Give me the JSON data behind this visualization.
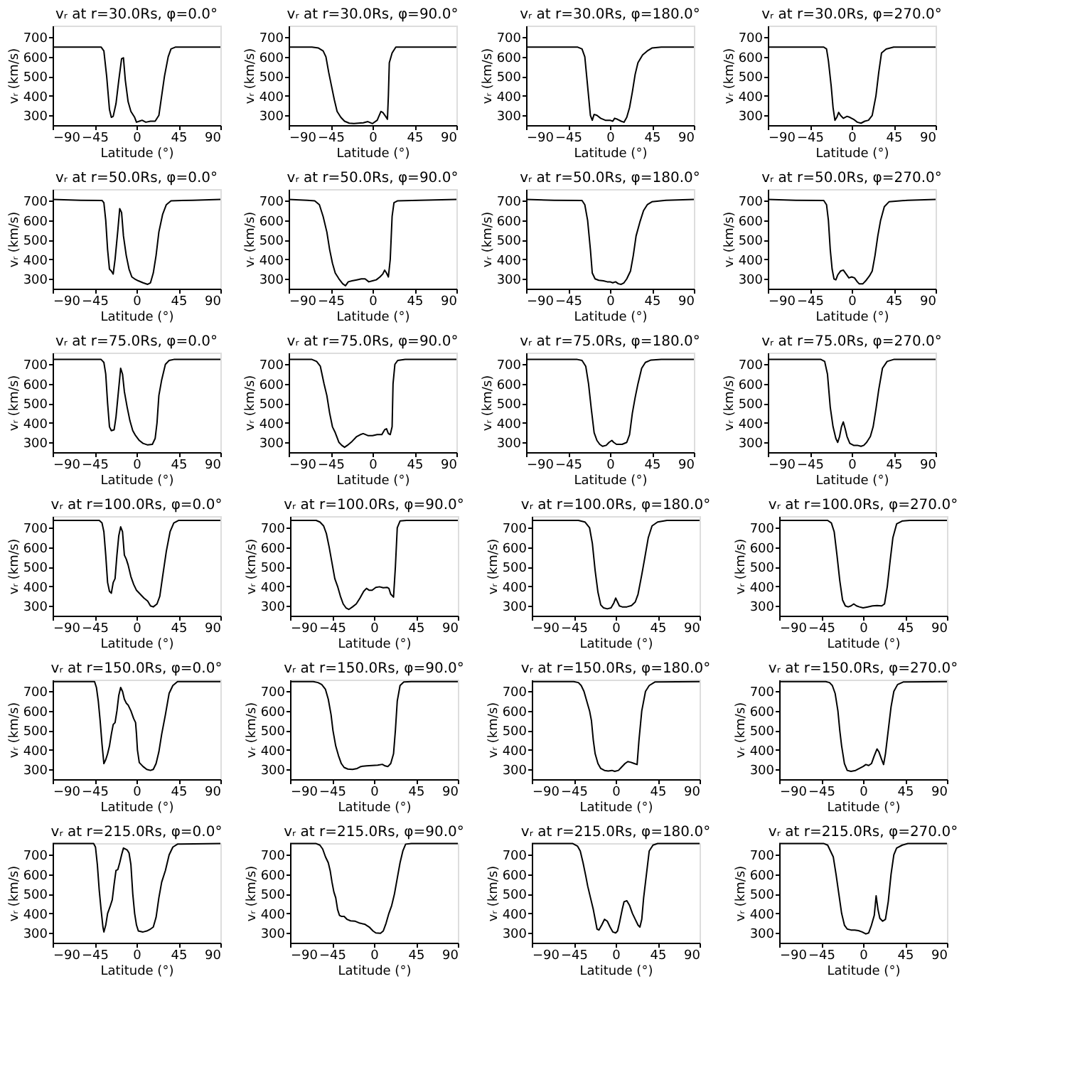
{
  "chart_data": [
    {
      "type": "line",
      "title": "vᵣ at r=30.0Rs, φ=0.0°",
      "xlabel": "Latitude (°)",
      "ylabel": "vᵣ (km/s)",
      "xlim": [
        -90,
        90
      ],
      "ylim": [
        250,
        760
      ],
      "xticks": [
        -90,
        -45,
        0,
        45,
        90
      ],
      "yticks": [
        300,
        400,
        500,
        600,
        700
      ],
      "series": [
        {
          "color": "#000000",
          "x": [
            -90,
            -38,
            -35,
            -32,
            -29,
            -27,
            -25,
            -22,
            -19,
            -16,
            -14,
            -12,
            -9,
            -6,
            -2,
            0,
            3,
            6,
            10,
            15,
            20,
            24,
            27,
            30,
            34,
            37,
            42,
            90
          ],
          "values": [
            650,
            650,
            630,
            500,
            330,
            290,
            295,
            360,
            480,
            590,
            595,
            480,
            370,
            320,
            290,
            265,
            270,
            275,
            265,
            270,
            270,
            300,
            400,
            500,
            600,
            640,
            650,
            650
          ]
        }
      ]
    },
    {
      "type": "line",
      "title": "vᵣ at r=30.0Rs, φ=90.0°",
      "xlabel": "Latitude (°)",
      "ylabel": "vᵣ (km/s)",
      "xlim": [
        -90,
        90
      ],
      "ylim": [
        250,
        760
      ],
      "xticks": [
        -90,
        -45,
        0,
        45,
        90
      ],
      "yticks": [
        300,
        400,
        500,
        600,
        700
      ],
      "series": [
        {
          "color": "#000000",
          "x": [
            -90,
            -65,
            -58,
            -53,
            -50,
            -47,
            -44,
            -41,
            -38,
            -34,
            -30,
            -25,
            -20,
            -10,
            -5,
            0,
            5,
            9,
            11,
            14,
            16,
            17,
            18,
            21,
            25,
            90
          ],
          "values": [
            650,
            650,
            645,
            630,
            600,
            520,
            450,
            380,
            320,
            290,
            270,
            260,
            258,
            262,
            268,
            258,
            275,
            320,
            315,
            295,
            280,
            400,
            570,
            620,
            650,
            650
          ]
        }
      ]
    },
    {
      "type": "line",
      "title": "vᵣ at r=30.0Rs, φ=180.0°",
      "xlabel": "Latitude (°)",
      "ylabel": "vᵣ (km/s)",
      "xlim": [
        -90,
        90
      ],
      "ylim": [
        250,
        760
      ],
      "xticks": [
        -90,
        -45,
        0,
        45,
        90
      ],
      "yticks": [
        300,
        400,
        500,
        600,
        700
      ],
      "series": [
        {
          "color": "#000000",
          "x": [
            -90,
            -35,
            -30,
            -27,
            -25,
            -23,
            -21,
            -19,
            -17,
            -14,
            -10,
            -5,
            0,
            3,
            5,
            8,
            12,
            15,
            18,
            21,
            24,
            27,
            30,
            35,
            40,
            45,
            55,
            90
          ],
          "values": [
            650,
            650,
            640,
            600,
            500,
            400,
            300,
            275,
            305,
            300,
            285,
            275,
            275,
            270,
            285,
            280,
            270,
            265,
            290,
            340,
            420,
            510,
            570,
            610,
            630,
            645,
            650,
            650
          ]
        }
      ]
    },
    {
      "type": "line",
      "title": "vᵣ at r=30.0Rs, φ=270.0°",
      "xlabel": "Latitude (°)",
      "ylabel": "vᵣ (km/s)",
      "xlim": [
        -90,
        90
      ],
      "ylim": [
        250,
        760
      ],
      "xticks": [
        -90,
        -45,
        0,
        45,
        90
      ],
      "yticks": [
        300,
        400,
        500,
        600,
        700
      ],
      "series": [
        {
          "color": "#000000",
          "x": [
            -90,
            -30,
            -27,
            -25,
            -22,
            -20,
            -18,
            -16,
            -14,
            -12,
            -9,
            -5,
            -2,
            2,
            6,
            10,
            14,
            18,
            22,
            26,
            29,
            32,
            37,
            45,
            90
          ],
          "values": [
            650,
            650,
            640,
            580,
            450,
            340,
            275,
            290,
            315,
            300,
            285,
            295,
            290,
            280,
            265,
            260,
            270,
            275,
            300,
            400,
            520,
            620,
            640,
            650,
            650
          ]
        }
      ]
    },
    {
      "type": "line",
      "title": "vᵣ at r=50.0Rs, φ=0.0°",
      "xlabel": "Latitude (°)",
      "ylabel": "vᵣ (km/s)",
      "xlim": [
        -90,
        90
      ],
      "ylim": [
        250,
        760
      ],
      "xticks": [
        -90,
        -45,
        0,
        45,
        90
      ],
      "yticks": [
        300,
        400,
        500,
        600,
        700
      ],
      "series": [
        {
          "color": "#000000",
          "x": [
            -90,
            -60,
            -37,
            -35,
            -33,
            -31,
            -29,
            -27,
            -25,
            -23,
            -20,
            -18,
            -16,
            -14,
            -11,
            -8,
            -5,
            -2,
            2,
            7,
            12,
            15,
            18,
            21,
            24,
            28,
            32,
            37,
            60,
            90
          ],
          "values": [
            707,
            703,
            702,
            690,
            600,
            450,
            350,
            340,
            325,
            400,
            550,
            660,
            640,
            520,
            420,
            350,
            310,
            300,
            290,
            280,
            272,
            280,
            330,
            420,
            540,
            630,
            680,
            700,
            703,
            707
          ]
        }
      ]
    },
    {
      "type": "line",
      "title": "vᵣ at r=50.0Rs, φ=90.0°",
      "xlabel": "Latitude (°)",
      "ylabel": "vᵣ (km/s)",
      "xlim": [
        -90,
        90
      ],
      "ylim": [
        250,
        760
      ],
      "xticks": [
        -90,
        -45,
        0,
        45,
        90
      ],
      "yticks": [
        300,
        400,
        500,
        600,
        700
      ],
      "series": [
        {
          "color": "#000000",
          "x": [
            -90,
            -70,
            -62,
            -57,
            -53,
            -49,
            -46,
            -43,
            -40,
            -36,
            -32,
            -29,
            -26,
            -22,
            -17,
            -12,
            -8,
            -4,
            0,
            4,
            8,
            11,
            13,
            15,
            17,
            19,
            21,
            23,
            27,
            50,
            90
          ],
          "values": [
            707,
            703,
            700,
            680,
            620,
            540,
            450,
            380,
            330,
            300,
            275,
            265,
            285,
            290,
            295,
            300,
            300,
            285,
            290,
            295,
            310,
            325,
            345,
            330,
            310,
            400,
            620,
            690,
            700,
            703,
            707
          ]
        }
      ]
    },
    {
      "type": "line",
      "title": "vᵣ at r=50.0Rs, φ=180.0°",
      "xlabel": "Latitude (°)",
      "ylabel": "vᵣ (km/s)",
      "xlim": [
        -90,
        90
      ],
      "ylim": [
        250,
        760
      ],
      "xticks": [
        -90,
        -45,
        0,
        45,
        90
      ],
      "yticks": [
        300,
        400,
        500,
        600,
        700
      ],
      "series": [
        {
          "color": "#000000",
          "x": [
            -90,
            -60,
            -30,
            -27,
            -24,
            -21,
            -19,
            -16,
            -12,
            -7,
            -3,
            0,
            3,
            6,
            9,
            12,
            15,
            18,
            22,
            25,
            28,
            32,
            36,
            40,
            45,
            60,
            90
          ],
          "values": [
            707,
            703,
            702,
            680,
            600,
            450,
            330,
            300,
            293,
            290,
            285,
            285,
            280,
            285,
            275,
            272,
            280,
            300,
            340,
            420,
            520,
            590,
            650,
            680,
            695,
            703,
            707
          ]
        }
      ]
    },
    {
      "type": "line",
      "title": "vᵣ at r=50.0Rs, φ=270.0°",
      "xlabel": "Latitude (°)",
      "ylabel": "vᵣ (km/s)",
      "xlim": [
        -90,
        90
      ],
      "ylim": [
        250,
        760
      ],
      "xticks": [
        -90,
        -45,
        0,
        45,
        90
      ],
      "yticks": [
        300,
        400,
        500,
        600,
        700
      ],
      "series": [
        {
          "color": "#000000",
          "x": [
            -90,
            -60,
            -30,
            -27,
            -25,
            -23,
            -21,
            -19,
            -17,
            -15,
            -12,
            -9,
            -6,
            -3,
            0,
            3,
            6,
            8,
            12,
            15,
            19,
            22,
            25,
            28,
            31,
            35,
            40,
            60,
            90
          ],
          "values": [
            707,
            703,
            702,
            680,
            600,
            450,
            350,
            300,
            295,
            320,
            340,
            345,
            325,
            305,
            310,
            305,
            285,
            275,
            275,
            290,
            315,
            340,
            420,
            520,
            600,
            670,
            695,
            703,
            707
          ]
        }
      ]
    },
    {
      "type": "line",
      "title": "vᵣ at r=75.0Rs, φ=0.0°",
      "xlabel": "Latitude (°)",
      "ylabel": "vᵣ (km/s)",
      "xlim": [
        -90,
        90
      ],
      "ylim": [
        250,
        760
      ],
      "xticks": [
        -90,
        -45,
        0,
        45,
        90
      ],
      "yticks": [
        300,
        400,
        500,
        600,
        700
      ],
      "series": [
        {
          "color": "#000000",
          "x": [
            -90,
            -38,
            -35,
            -33,
            -31,
            -29,
            -27,
            -24,
            -22,
            -19,
            -17,
            -15,
            -13,
            -10,
            -7,
            -4,
            -1,
            3,
            7,
            12,
            17,
            20,
            22,
            24,
            27,
            31,
            35,
            40,
            90
          ],
          "values": [
            725,
            725,
            710,
            650,
            500,
            380,
            360,
            365,
            430,
            580,
            680,
            650,
            560,
            480,
            410,
            360,
            335,
            310,
            295,
            287,
            290,
            320,
            400,
            540,
            620,
            700,
            720,
            725,
            725
          ]
        }
      ]
    },
    {
      "type": "line",
      "title": "vᵣ at r=75.0Rs, φ=90.0°",
      "xlabel": "Latitude (°)",
      "ylabel": "vᵣ (km/s)",
      "xlim": [
        -90,
        90
      ],
      "ylim": [
        250,
        760
      ],
      "xticks": [
        -90,
        -45,
        0,
        45,
        90
      ],
      "yticks": [
        300,
        400,
        500,
        600,
        700
      ],
      "series": [
        {
          "color": "#000000",
          "x": [
            -90,
            -65,
            -60,
            -56,
            -52,
            -49,
            -46,
            -43,
            -40,
            -36,
            -33,
            -30,
            -27,
            -22,
            -17,
            -13,
            -10,
            -5,
            0,
            5,
            10,
            13,
            15,
            17,
            19,
            21,
            22,
            24,
            27,
            35,
            90
          ],
          "values": [
            725,
            725,
            715,
            690,
            600,
            540,
            450,
            380,
            350,
            300,
            285,
            275,
            285,
            305,
            330,
            340,
            345,
            335,
            335,
            340,
            340,
            365,
            370,
            345,
            340,
            380,
            600,
            700,
            720,
            725,
            725
          ]
        }
      ]
    },
    {
      "type": "line",
      "title": "vᵣ at r=75.0Rs, φ=180.0°",
      "xlabel": "Latitude (°)",
      "ylabel": "vᵣ (km/s)",
      "xlim": [
        -90,
        90
      ],
      "ylim": [
        250,
        760
      ],
      "xticks": [
        -90,
        -45,
        0,
        45,
        90
      ],
      "yticks": [
        300,
        400,
        500,
        600,
        700
      ],
      "series": [
        {
          "color": "#000000",
          "x": [
            -90,
            -35,
            -30,
            -26,
            -23,
            -20,
            -17,
            -14,
            -11,
            -8,
            -4,
            -1,
            2,
            4,
            7,
            13,
            18,
            21,
            24,
            27,
            30,
            34,
            38,
            44,
            55,
            90
          ],
          "values": [
            725,
            725,
            720,
            690,
            600,
            470,
            350,
            310,
            290,
            280,
            285,
            300,
            310,
            300,
            290,
            290,
            300,
            340,
            450,
            530,
            600,
            680,
            710,
            722,
            725,
            725
          ]
        }
      ]
    },
    {
      "type": "line",
      "title": "vᵣ at r=75.0Rs, φ=270.0°",
      "xlabel": "Latitude (°)",
      "ylabel": "vᵣ (km/s)",
      "xlim": [
        -90,
        90
      ],
      "ylim": [
        250,
        760
      ],
      "xticks": [
        -90,
        -45,
        0,
        45,
        90
      ],
      "yticks": [
        300,
        400,
        500,
        600,
        700
      ],
      "series": [
        {
          "color": "#000000",
          "x": [
            -90,
            -33,
            -29,
            -26,
            -23,
            -20,
            -17,
            -15,
            -13,
            -11,
            -9,
            -7,
            -5,
            -2,
            2,
            6,
            10,
            13,
            16,
            20,
            23,
            26,
            29,
            33,
            38,
            45,
            90
          ],
          "values": [
            725,
            725,
            715,
            650,
            480,
            380,
            320,
            300,
            330,
            380,
            405,
            370,
            330,
            295,
            285,
            285,
            280,
            285,
            300,
            330,
            380,
            470,
            570,
            680,
            715,
            725,
            725
          ]
        }
      ]
    },
    {
      "type": "line",
      "title": "vᵣ at r=100.0Rs, φ=0.0°",
      "xlabel": "Latitude (°)",
      "ylabel": "vᵣ (km/s)",
      "xlim": [
        -90,
        90
      ],
      "ylim": [
        250,
        760
      ],
      "xticks": [
        -90,
        -45,
        0,
        45,
        90
      ],
      "yticks": [
        300,
        400,
        500,
        600,
        700
      ],
      "series": [
        {
          "color": "#000000",
          "x": [
            -90,
            -40,
            -37,
            -35,
            -33,
            -31,
            -29,
            -27,
            -25,
            -23,
            -21,
            -19,
            -17,
            -15,
            -13,
            -11,
            -9,
            -6,
            -3,
            0,
            4,
            8,
            12,
            15,
            18,
            22,
            25,
            28,
            32,
            36,
            40,
            45,
            90
          ],
          "values": [
            738,
            738,
            725,
            680,
            560,
            420,
            375,
            365,
            420,
            440,
            560,
            660,
            705,
            680,
            560,
            540,
            510,
            450,
            410,
            380,
            360,
            340,
            325,
            300,
            295,
            310,
            350,
            450,
            580,
            680,
            725,
            738,
            738
          ]
        }
      ]
    },
    {
      "type": "line",
      "title": "vᵣ at r=100.0Rs, φ=90.0°",
      "xlabel": "Latitude (°)",
      "ylabel": "vᵣ (km/s)",
      "xlim": [
        -90,
        90
      ],
      "ylim": [
        250,
        760
      ],
      "xticks": [
        -90,
        -45,
        0,
        45,
        90
      ],
      "yticks": [
        300,
        400,
        500,
        600,
        700
      ],
      "series": [
        {
          "color": "#000000",
          "x": [
            -90,
            -62,
            -58,
            -54,
            -51,
            -48,
            -45,
            -42,
            -39,
            -36,
            -33,
            -30,
            -27,
            -23,
            -19,
            -15,
            -11,
            -8,
            -5,
            -2,
            2,
            6,
            10,
            14,
            16,
            18,
            21,
            23,
            25,
            28,
            35,
            90
          ],
          "values": [
            738,
            738,
            730,
            710,
            670,
            600,
            520,
            440,
            400,
            350,
            310,
            290,
            282,
            295,
            310,
            340,
            375,
            390,
            380,
            380,
            395,
            398,
            393,
            395,
            390,
            360,
            345,
            500,
            700,
            735,
            738,
            738
          ]
        }
      ]
    },
    {
      "type": "line",
      "title": "vᵣ at r=100.0Rs, φ=180.0°",
      "xlabel": "Latitude (°)",
      "ylabel": "vᵣ (km/s)",
      "xlim": [
        -90,
        90
      ],
      "ylim": [
        250,
        760
      ],
      "xticks": [
        -90,
        -45,
        0,
        45,
        90
      ],
      "yticks": [
        300,
        400,
        500,
        600,
        700
      ],
      "series": [
        {
          "color": "#000000",
          "x": [
            -90,
            -40,
            -33,
            -28,
            -25,
            -22,
            -19,
            -16,
            -13,
            -9,
            -5,
            -2,
            0,
            2,
            4,
            7,
            12,
            17,
            21,
            24,
            28,
            31,
            35,
            39,
            45,
            55,
            90
          ],
          "values": [
            738,
            738,
            730,
            700,
            620,
            480,
            370,
            305,
            290,
            285,
            290,
            315,
            340,
            320,
            300,
            295,
            295,
            302,
            320,
            360,
            460,
            540,
            650,
            710,
            730,
            738,
            738
          ]
        }
      ]
    },
    {
      "type": "line",
      "title": "vᵣ at r=100.0Rs, φ=270.0°",
      "xlabel": "Latitude (°)",
      "ylabel": "vᵣ (km/s)",
      "xlim": [
        -90,
        90
      ],
      "ylim": [
        250,
        760
      ],
      "xticks": [
        -90,
        -45,
        0,
        45,
        90
      ],
      "yticks": [
        300,
        400,
        500,
        600,
        700
      ],
      "series": [
        {
          "color": "#000000",
          "x": [
            -90,
            -38,
            -34,
            -31,
            -28,
            -25,
            -22,
            -19,
            -16,
            -13,
            -10,
            -7,
            -4,
            0,
            5,
            10,
            15,
            20,
            23,
            26,
            29,
            32,
            36,
            42,
            50,
            90
          ],
          "values": [
            738,
            738,
            725,
            680,
            560,
            430,
            330,
            300,
            295,
            300,
            310,
            300,
            295,
            290,
            295,
            300,
            302,
            300,
            310,
            400,
            530,
            650,
            720,
            735,
            738,
            738
          ]
        }
      ]
    },
    {
      "type": "line",
      "title": "vᵣ at r=150.0Rs, φ=0.0°",
      "xlabel": "Latitude (°)",
      "ylabel": "vᵣ (km/s)",
      "xlim": [
        -90,
        90
      ],
      "ylim": [
        250,
        760
      ],
      "xticks": [
        -90,
        -45,
        0,
        45,
        90
      ],
      "yticks": [
        300,
        400,
        500,
        600,
        700
      ],
      "series": [
        {
          "color": "#000000",
          "x": [
            -90,
            -45,
            -43,
            -41,
            -39,
            -37,
            -35,
            -33,
            -31,
            -29,
            -27,
            -25,
            -23,
            -21,
            -19,
            -17,
            -15,
            -13,
            -11,
            -9,
            -6,
            -3,
            -1,
            0,
            1,
            3,
            7,
            11,
            15,
            18,
            21,
            24,
            27,
            31,
            35,
            39,
            44,
            90
          ],
          "values": [
            750,
            750,
            720,
            650,
            550,
            430,
            330,
            350,
            380,
            420,
            480,
            530,
            540,
            600,
            680,
            720,
            700,
            660,
            640,
            630,
            600,
            560,
            540,
            480,
            400,
            335,
            315,
            300,
            295,
            300,
            330,
            390,
            480,
            580,
            690,
            730,
            750,
            750
          ]
        }
      ]
    },
    {
      "type": "line",
      "title": "vᵣ at r=150.0Rs, φ=90.0°",
      "xlabel": "Latitude (°)",
      "ylabel": "vᵣ (km/s)",
      "xlim": [
        -90,
        90
      ],
      "ylim": [
        250,
        760
      ],
      "xticks": [
        -90,
        -45,
        0,
        45,
        90
      ],
      "yticks": [
        300,
        400,
        500,
        600,
        700
      ],
      "series": [
        {
          "color": "#000000",
          "x": [
            -90,
            -65,
            -60,
            -56,
            -52,
            -49,
            -46,
            -44,
            -41,
            -38,
            -35,
            -32,
            -28,
            -23,
            -18,
            -14,
            -8,
            -2,
            4,
            9,
            12,
            15,
            18,
            21,
            23,
            25,
            28,
            32,
            40,
            90
          ],
          "values": [
            750,
            750,
            745,
            735,
            710,
            660,
            580,
            500,
            420,
            370,
            330,
            310,
            302,
            300,
            305,
            315,
            318,
            320,
            322,
            326,
            318,
            315,
            330,
            380,
            500,
            650,
            730,
            748,
            750,
            750
          ]
        }
      ]
    },
    {
      "type": "line",
      "title": "vᵣ at r=150.0Rs, φ=180.0°",
      "xlabel": "Latitude (°)",
      "ylabel": "vᵣ (km/s)",
      "xlim": [
        -90,
        90
      ],
      "ylim": [
        250,
        760
      ],
      "xticks": [
        -90,
        -45,
        0,
        45,
        90
      ],
      "yticks": [
        300,
        400,
        500,
        600,
        700
      ],
      "series": [
        {
          "color": "#000000",
          "x": [
            -90,
            -45,
            -40,
            -37,
            -34,
            -31,
            -28,
            -26,
            -24,
            -22,
            -19,
            -16,
            -12,
            -8,
            -4,
            -1,
            3,
            6,
            10,
            13,
            16,
            20,
            23,
            25,
            28,
            32,
            36,
            42,
            90
          ],
          "values": [
            750,
            750,
            745,
            730,
            700,
            650,
            600,
            550,
            450,
            380,
            330,
            305,
            295,
            292,
            295,
            290,
            295,
            310,
            330,
            340,
            337,
            330,
            325,
            450,
            600,
            700,
            730,
            748,
            750
          ]
        }
      ]
    },
    {
      "type": "line",
      "title": "vᵣ at r=150.0Rs, φ=270.0°",
      "xlabel": "Latitude (°)",
      "ylabel": "vᵣ (km/s)",
      "xlim": [
        -90,
        90
      ],
      "ylim": [
        250,
        760
      ],
      "xticks": [
        -90,
        -45,
        0,
        45,
        90
      ],
      "yticks": [
        300,
        400,
        500,
        600,
        700
      ],
      "series": [
        {
          "color": "#000000",
          "x": [
            -90,
            -40,
            -36,
            -33,
            -30,
            -27,
            -25,
            -23,
            -20,
            -17,
            -13,
            -8,
            -4,
            0,
            3,
            6,
            9,
            12,
            15,
            17,
            20,
            22,
            24,
            27,
            30,
            33,
            37,
            43,
            90
          ],
          "values": [
            750,
            750,
            745,
            730,
            690,
            600,
            500,
            420,
            330,
            295,
            290,
            295,
            305,
            315,
            325,
            320,
            330,
            370,
            405,
            390,
            350,
            325,
            380,
            500,
            620,
            700,
            735,
            748,
            750
          ]
        }
      ]
    },
    {
      "type": "line",
      "title": "vᵣ at r=215.0Rs, φ=0.0°",
      "xlabel": "Latitude (°)",
      "ylabel": "vᵣ (km/s)",
      "xlim": [
        -90,
        90
      ],
      "ylim": [
        250,
        760
      ],
      "xticks": [
        -90,
        -45,
        0,
        45,
        90
      ],
      "yticks": [
        300,
        400,
        500,
        600,
        700
      ],
      "series": [
        {
          "color": "#000000",
          "x": [
            -90,
            -46,
            -44,
            -42,
            -40,
            -38,
            -36,
            -35,
            -33,
            -31,
            -28,
            -26,
            -24,
            -22,
            -20,
            -18,
            -16,
            -14,
            -12,
            -10,
            -8,
            -6,
            -4,
            -2,
            0,
            2,
            7,
            11,
            15,
            18,
            21,
            24,
            27,
            31,
            35,
            39,
            44,
            90
          ],
          "values": [
            758,
            758,
            740,
            650,
            520,
            420,
            330,
            305,
            340,
            400,
            440,
            470,
            550,
            620,
            625,
            660,
            700,
            735,
            730,
            725,
            710,
            650,
            500,
            400,
            340,
            310,
            305,
            310,
            320,
            330,
            380,
            480,
            560,
            620,
            700,
            740,
            755,
            758
          ]
        }
      ]
    },
    {
      "type": "line",
      "title": "vᵣ at r=215.0Rs, φ=90.0°",
      "xlabel": "Latitude (°)",
      "ylabel": "vᵣ (km/s)",
      "xlim": [
        -90,
        90
      ],
      "ylim": [
        250,
        760
      ],
      "xticks": [
        -90,
        -45,
        0,
        45,
        90
      ],
      "yticks": [
        300,
        400,
        500,
        600,
        700
      ],
      "series": [
        {
          "color": "#000000",
          "x": [
            -90,
            -62,
            -58,
            -55,
            -52,
            -49,
            -47,
            -45,
            -43,
            -41,
            -39,
            -37,
            -35,
            -32,
            -29,
            -25,
            -20,
            -15,
            -10,
            -5,
            -1,
            2,
            7,
            10,
            13,
            16,
            19,
            22,
            25,
            28,
            31,
            34,
            40,
            90
          ],
          "values": [
            758,
            758,
            750,
            730,
            690,
            660,
            620,
            560,
            510,
            480,
            420,
            390,
            385,
            385,
            370,
            362,
            360,
            350,
            345,
            330,
            310,
            300,
            298,
            310,
            350,
            400,
            440,
            500,
            580,
            660,
            720,
            755,
            758,
            758
          ]
        }
      ]
    },
    {
      "type": "line",
      "title": "vᵣ at r=215.0Rs, φ=180.0°",
      "xlabel": "Latitude (°)",
      "ylabel": "vᵣ (km/s)",
      "xlim": [
        -90,
        90
      ],
      "ylim": [
        250,
        760
      ],
      "xticks": [
        -90,
        -45,
        0,
        45,
        90
      ],
      "yticks": [
        300,
        400,
        500,
        600,
        700
      ],
      "series": [
        {
          "color": "#000000",
          "x": [
            -90,
            -46,
            -41,
            -38,
            -35,
            -32,
            -30,
            -27,
            -24,
            -22,
            -20,
            -18,
            -15,
            -12,
            -9,
            -6,
            -3,
            0,
            2,
            4,
            7,
            9,
            12,
            15,
            18,
            21,
            24,
            26,
            28,
            30,
            33,
            36,
            40,
            45,
            90
          ],
          "values": [
            758,
            758,
            745,
            720,
            660,
            590,
            540,
            480,
            420,
            370,
            320,
            315,
            340,
            370,
            360,
            330,
            305,
            300,
            310,
            350,
            420,
            460,
            465,
            440,
            400,
            370,
            340,
            330,
            370,
            480,
            600,
            720,
            750,
            758,
            758
          ]
        }
      ]
    },
    {
      "type": "line",
      "title": "vᵣ at r=215.0Rs, φ=270.0°",
      "xlabel": "Latitude (°)",
      "ylabel": "vᵣ (km/s)",
      "xlim": [
        -90,
        90
      ],
      "ylim": [
        250,
        760
      ],
      "xticks": [
        -90,
        -45,
        0,
        45,
        90
      ],
      "yticks": [
        300,
        400,
        500,
        600,
        700
      ],
      "series": [
        {
          "color": "#000000",
          "x": [
            -90,
            -42,
            -38,
            -35,
            -32,
            -29,
            -26,
            -23,
            -20,
            -17,
            -13,
            -9,
            -5,
            -1,
            3,
            6,
            9,
            12,
            14,
            16,
            18,
            21,
            24,
            27,
            30,
            33,
            36,
            42,
            48,
            90
          ],
          "values": [
            758,
            758,
            750,
            720,
            690,
            600,
            500,
            400,
            340,
            320,
            315,
            315,
            312,
            305,
            295,
            300,
            340,
            390,
            490,
            420,
            375,
            360,
            370,
            460,
            600,
            700,
            735,
            750,
            758,
            758
          ]
        }
      ]
    }
  ]
}
